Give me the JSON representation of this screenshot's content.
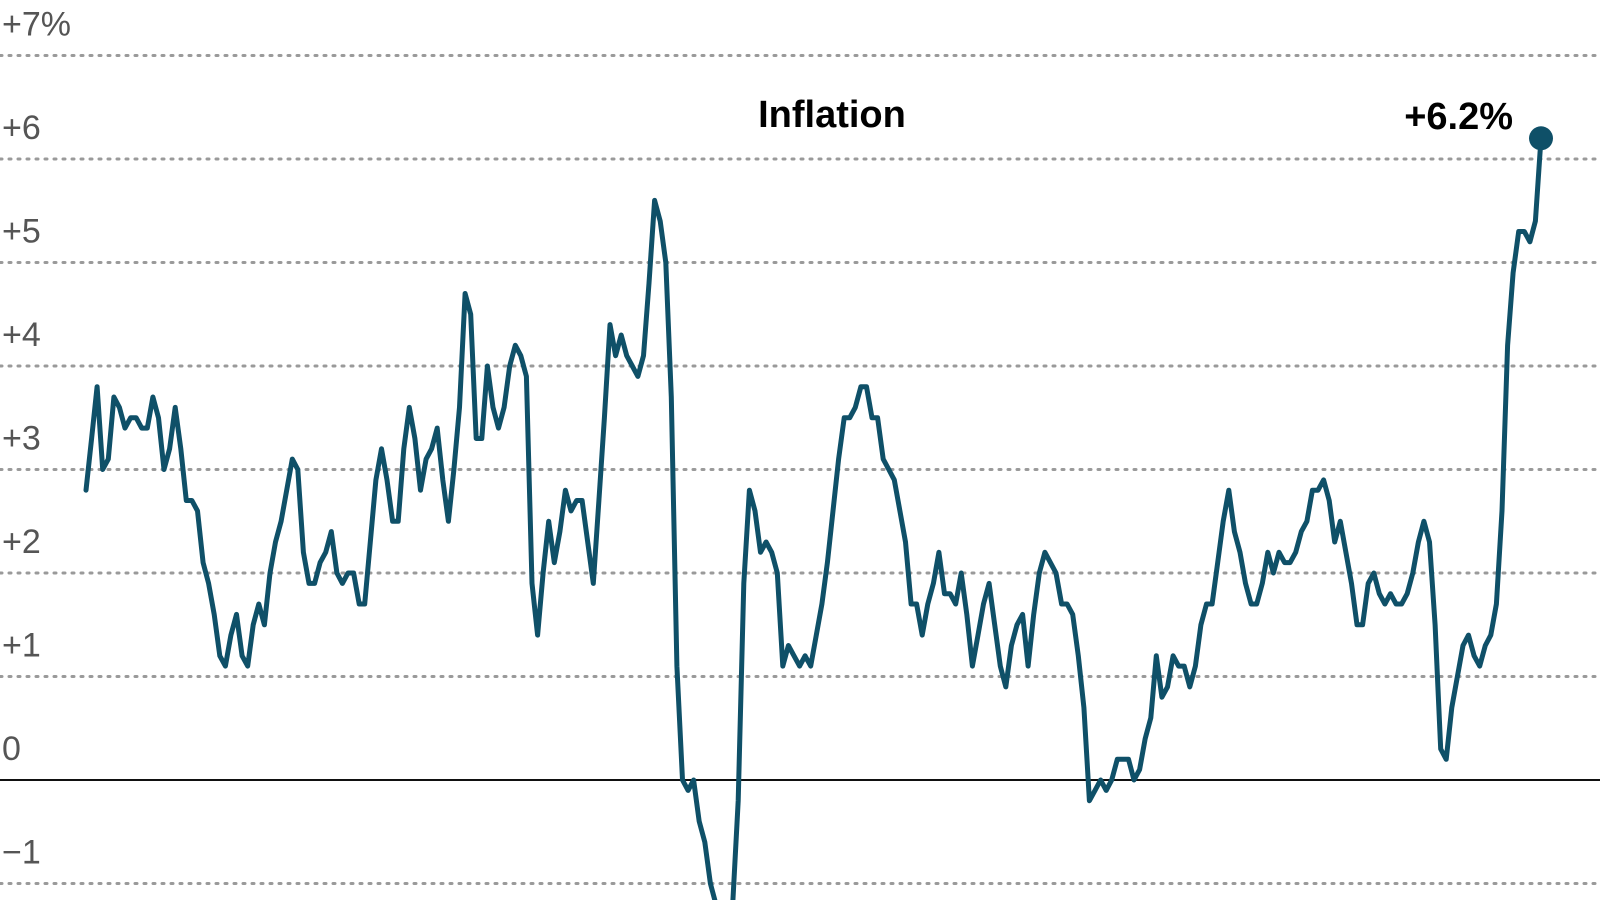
{
  "chart_data": {
    "type": "line",
    "title": "Inflation",
    "xlabel": "",
    "ylabel": "",
    "ylim": [
      -1.15,
      7.3
    ],
    "grid": true,
    "yticks": [
      {
        "value": 7,
        "label": "+7%"
      },
      {
        "value": 6,
        "label": "+6"
      },
      {
        "value": 5,
        "label": "+5"
      },
      {
        "value": 4,
        "label": "+4"
      },
      {
        "value": 3,
        "label": "+3"
      },
      {
        "value": 2,
        "label": "+2"
      },
      {
        "value": 1,
        "label": "+1"
      },
      {
        "value": 0,
        "label": "0"
      },
      {
        "value": -1,
        "label": "−1"
      }
    ],
    "series": [
      {
        "color": "#0f5068",
        "values": [
          2.8,
          3.3,
          3.8,
          3.0,
          3.1,
          3.7,
          3.6,
          3.4,
          3.5,
          3.5,
          3.4,
          3.4,
          3.7,
          3.5,
          3.0,
          3.2,
          3.6,
          3.2,
          2.7,
          2.7,
          2.6,
          2.1,
          1.9,
          1.6,
          1.2,
          1.1,
          1.4,
          1.6,
          1.2,
          1.1,
          1.5,
          1.7,
          1.5,
          2.0,
          2.3,
          2.5,
          2.8,
          3.1,
          3.0,
          2.2,
          1.9,
          1.9,
          2.1,
          2.2,
          2.4,
          2.0,
          1.9,
          2.0,
          2.0,
          1.7,
          1.7,
          2.3,
          2.9,
          3.2,
          2.9,
          2.5,
          2.5,
          3.2,
          3.6,
          3.3,
          2.8,
          3.1,
          3.2,
          3.4,
          2.9,
          2.5,
          3.0,
          3.6,
          4.7,
          4.5,
          3.3,
          3.3,
          4.0,
          3.6,
          3.4,
          3.6,
          4.0,
          4.2,
          4.1,
          3.9,
          1.9,
          1.4,
          2.0,
          2.5,
          2.1,
          2.4,
          2.8,
          2.6,
          2.7,
          2.7,
          2.3,
          1.9,
          2.7,
          3.5,
          4.4,
          4.1,
          4.3,
          4.1,
          4.0,
          3.9,
          4.1,
          4.8,
          5.6,
          5.4,
          5.0,
          3.7,
          1.1,
          0.0,
          -0.1,
          0.0,
          -0.4,
          -0.6,
          -1.0,
          -1.2,
          -1.4,
          -1.3,
          -1.2,
          -0.2,
          1.9,
          2.8,
          2.6,
          2.2,
          2.3,
          2.2,
          2.0,
          1.1,
          1.3,
          1.2,
          1.1,
          1.2,
          1.1,
          1.4,
          1.7,
          2.1,
          2.6,
          3.1,
          3.5,
          3.5,
          3.6,
          3.8,
          3.8,
          3.5,
          3.5,
          3.1,
          3.0,
          2.9,
          2.6,
          2.3,
          1.7,
          1.7,
          1.4,
          1.7,
          1.9,
          2.2,
          1.8,
          1.8,
          1.7,
          2.0,
          1.6,
          1.1,
          1.4,
          1.7,
          1.9,
          1.5,
          1.1,
          0.9,
          1.3,
          1.5,
          1.6,
          1.1,
          1.6,
          2.0,
          2.2,
          2.1,
          2.0,
          1.7,
          1.7,
          1.6,
          1.2,
          0.7,
          -0.2,
          -0.1,
          0.0,
          -0.1,
          0.0,
          0.2,
          0.2,
          0.2,
          0.0,
          0.1,
          0.4,
          0.6,
          1.2,
          0.8,
          0.9,
          1.2,
          1.1,
          1.1,
          0.9,
          1.1,
          1.5,
          1.7,
          1.7,
          2.1,
          2.5,
          2.8,
          2.4,
          2.2,
          1.9,
          1.7,
          1.7,
          1.9,
          2.2,
          2.0,
          2.2,
          2.1,
          2.1,
          2.2,
          2.4,
          2.5,
          2.8,
          2.8,
          2.9,
          2.7,
          2.3,
          2.5,
          2.2,
          1.9,
          1.5,
          1.5,
          1.9,
          2.0,
          1.8,
          1.7,
          1.8,
          1.7,
          1.7,
          1.8,
          2.0,
          2.3,
          2.5,
          2.3,
          1.5,
          0.3,
          0.2,
          0.7,
          1.0,
          1.3,
          1.4,
          1.2,
          1.1,
          1.3,
          1.4,
          1.7,
          2.6,
          4.2,
          4.9,
          5.3,
          5.3,
          5.2,
          5.4,
          6.2
        ]
      }
    ],
    "annotations": [
      {
        "text": "+6.2%",
        "target": "last-point"
      }
    ]
  }
}
